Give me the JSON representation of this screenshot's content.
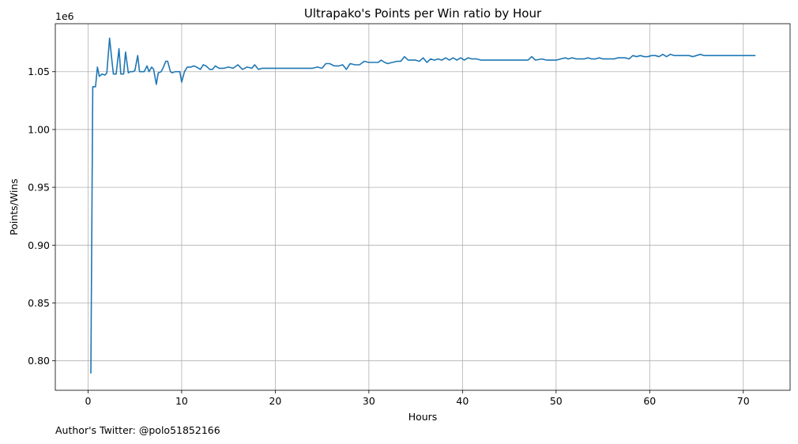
{
  "chart_data": {
    "type": "line",
    "title": "Ultrapako's Points per Win ratio by Hour",
    "xlabel": "Hours",
    "ylabel": "Points/Wins",
    "y_offset_text": "1e6",
    "xlim": [
      -3.5,
      75
    ],
    "ylim": [
      0.7745,
      1.0915
    ],
    "x_ticks": [
      0,
      10,
      20,
      30,
      40,
      50,
      60,
      70
    ],
    "y_ticks": [
      0.8,
      0.85,
      0.9,
      0.95,
      1.0,
      1.05
    ],
    "grid": true,
    "line_color": "#1f77b4",
    "series": [
      {
        "x": [
          0.3,
          0.5,
          0.8,
          1.0,
          1.2,
          1.5,
          1.8,
          2.0,
          2.3,
          2.5,
          2.7,
          3.0,
          3.3,
          3.5,
          3.8,
          4.0,
          4.3,
          4.5,
          4.8,
          5.0,
          5.3,
          5.5,
          5.8,
          6.0,
          6.3,
          6.5,
          6.8,
          7.0,
          7.3,
          7.5,
          7.8,
          8.0,
          8.3,
          8.5,
          8.8,
          9.0,
          9.3,
          9.5,
          9.8,
          10.0,
          10.3,
          10.6,
          11.0,
          11.3,
          11.6,
          12.0,
          12.3,
          12.6,
          13.0,
          13.3,
          13.6,
          14.0,
          14.5,
          15.0,
          15.5,
          16.0,
          16.5,
          17.0,
          17.5,
          17.8,
          18.2,
          18.6,
          19.0,
          20.0,
          21.0,
          22.0,
          23.0,
          24.0,
          24.5,
          25.0,
          25.4,
          25.8,
          26.3,
          26.8,
          27.2,
          27.6,
          28.0,
          28.5,
          29.0,
          29.5,
          30.0,
          30.5,
          31.0,
          31.3,
          31.7,
          32.0,
          32.5,
          33.0,
          33.4,
          33.8,
          34.2,
          34.6,
          35.0,
          35.4,
          35.8,
          36.2,
          36.6,
          37.0,
          37.4,
          37.8,
          38.2,
          38.6,
          39.0,
          39.4,
          39.8,
          40.2,
          40.6,
          41.0,
          41.5,
          42.0,
          43.0,
          44.0,
          45.0,
          46.0,
          47.0,
          47.4,
          47.8,
          48.5,
          49.0,
          49.5,
          50.0,
          50.5,
          51.0,
          51.3,
          51.7,
          52.2,
          52.6,
          53.0,
          53.4,
          53.8,
          54.2,
          54.6,
          55.0,
          55.4,
          55.8,
          56.2,
          56.6,
          57.0,
          57.4,
          57.8,
          58.2,
          58.6,
          59.0,
          59.4,
          59.8,
          60.2,
          60.6,
          61.0,
          61.4,
          61.8,
          62.2,
          62.6,
          63.0,
          63.4,
          63.8,
          64.2,
          64.6,
          65.0,
          65.4,
          65.8,
          66.2,
          66.6,
          67.0,
          67.5,
          68.0,
          68.5,
          69.0,
          69.5,
          70.0,
          70.5,
          71.3
        ],
        "y": [
          0.789,
          1.037,
          1.037,
          1.054,
          1.046,
          1.048,
          1.047,
          1.049,
          1.079,
          1.063,
          1.048,
          1.048,
          1.07,
          1.048,
          1.048,
          1.067,
          1.049,
          1.05,
          1.05,
          1.051,
          1.064,
          1.05,
          1.05,
          1.05,
          1.055,
          1.05,
          1.054,
          1.052,
          1.039,
          1.049,
          1.05,
          1.053,
          1.059,
          1.059,
          1.05,
          1.049,
          1.05,
          1.05,
          1.05,
          1.041,
          1.05,
          1.054,
          1.054,
          1.055,
          1.054,
          1.052,
          1.056,
          1.055,
          1.052,
          1.052,
          1.055,
          1.053,
          1.053,
          1.054,
          1.053,
          1.056,
          1.052,
          1.054,
          1.053,
          1.056,
          1.052,
          1.053,
          1.053,
          1.053,
          1.053,
          1.053,
          1.053,
          1.053,
          1.054,
          1.053,
          1.057,
          1.057,
          1.055,
          1.055,
          1.056,
          1.052,
          1.057,
          1.056,
          1.056,
          1.059,
          1.058,
          1.058,
          1.058,
          1.06,
          1.058,
          1.057,
          1.058,
          1.059,
          1.059,
          1.063,
          1.06,
          1.06,
          1.06,
          1.059,
          1.062,
          1.058,
          1.061,
          1.06,
          1.061,
          1.06,
          1.062,
          1.06,
          1.062,
          1.06,
          1.062,
          1.06,
          1.062,
          1.061,
          1.061,
          1.06,
          1.06,
          1.06,
          1.06,
          1.06,
          1.06,
          1.063,
          1.06,
          1.061,
          1.06,
          1.06,
          1.06,
          1.061,
          1.062,
          1.061,
          1.062,
          1.061,
          1.061,
          1.061,
          1.062,
          1.061,
          1.061,
          1.062,
          1.061,
          1.061,
          1.061,
          1.061,
          1.062,
          1.062,
          1.062,
          1.061,
          1.064,
          1.063,
          1.064,
          1.063,
          1.063,
          1.064,
          1.064,
          1.063,
          1.065,
          1.063,
          1.065,
          1.064,
          1.064,
          1.064,
          1.064,
          1.064,
          1.063,
          1.064,
          1.065,
          1.064,
          1.064,
          1.064,
          1.064,
          1.064,
          1.064,
          1.064,
          1.064,
          1.064,
          1.064,
          1.064,
          1.064
        ]
      }
    ]
  },
  "footer": {
    "author_text": "Author's Twitter: @polo51852166"
  }
}
